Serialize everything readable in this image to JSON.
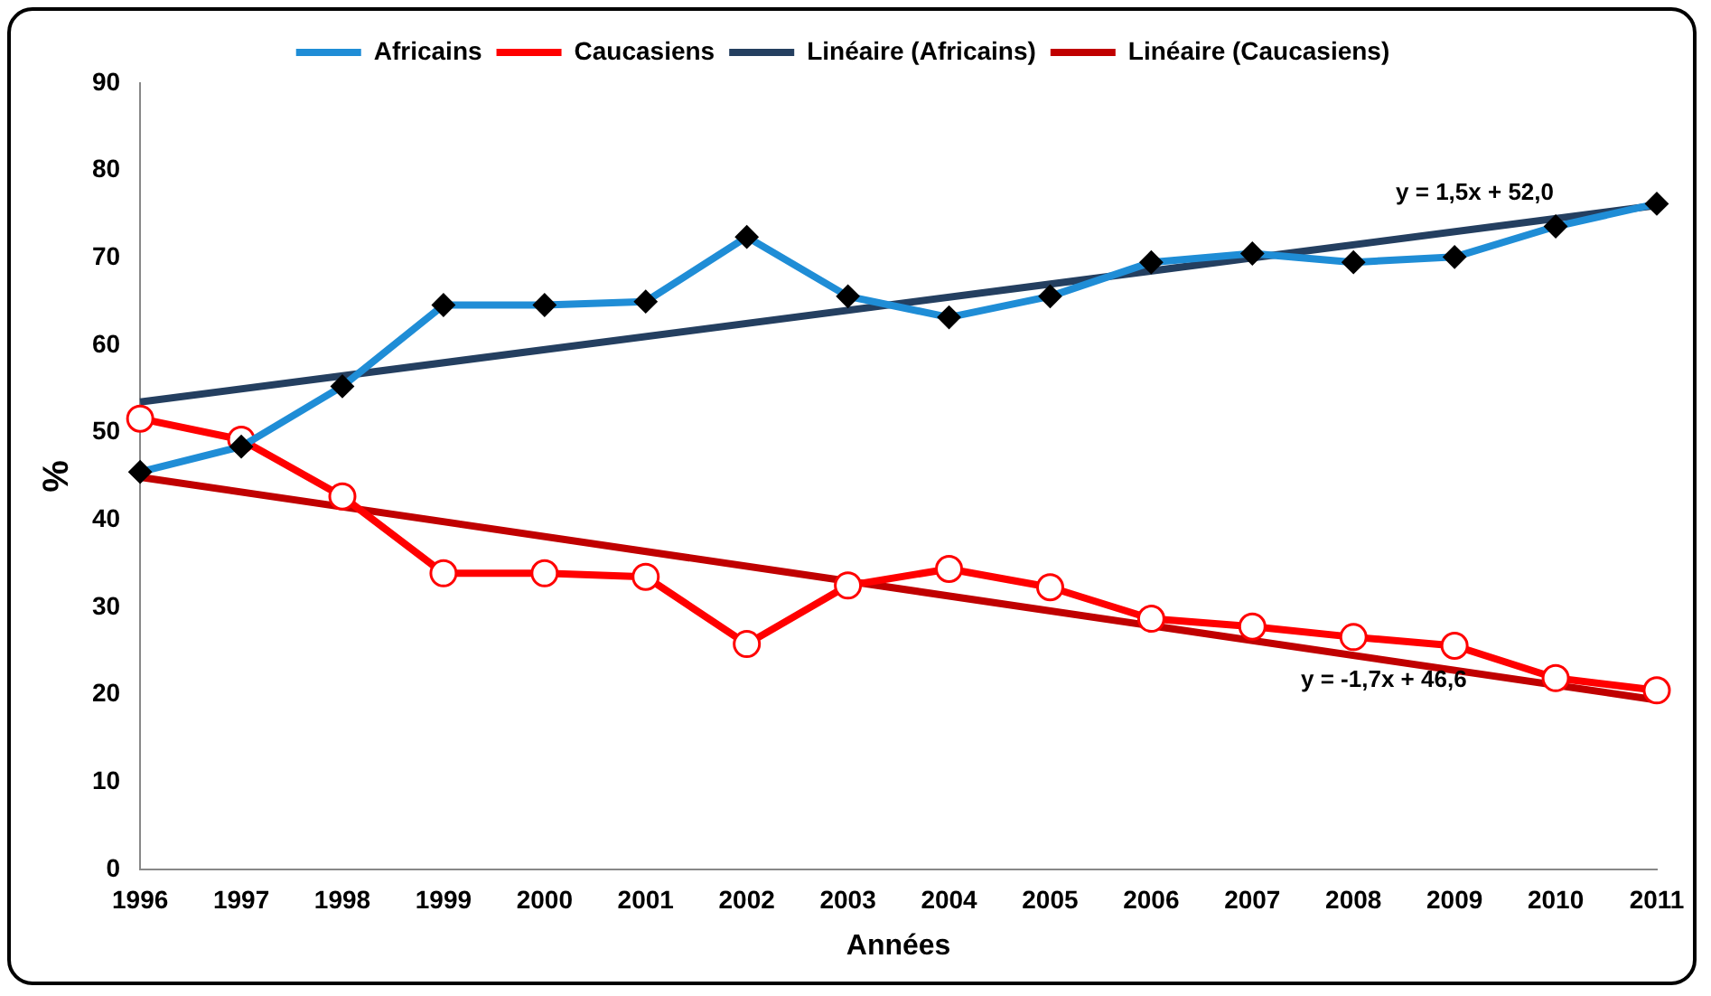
{
  "chart_data": {
    "type": "line",
    "xlabel": "Années",
    "ylabel": "%",
    "categories": [
      "1996",
      "1997",
      "1998",
      "1999",
      "2000",
      "2001",
      "2002",
      "2003",
      "2004",
      "2005",
      "2006",
      "2007",
      "2008",
      "2009",
      "2010",
      "2011"
    ],
    "series": [
      {
        "name": "Africains",
        "color": "#1f8dd6",
        "marker": "diamond",
        "values": [
          45.5,
          48.4,
          55.3,
          64.6,
          64.6,
          65.0,
          72.4,
          65.6,
          63.2,
          65.6,
          69.5,
          70.5,
          69.5,
          70.1,
          73.6,
          76.2
        ]
      },
      {
        "name": "Caucasiens",
        "color": "#ff0000",
        "marker": "circle",
        "values": [
          51.6,
          49.2,
          42.7,
          33.9,
          33.9,
          33.5,
          25.8,
          32.5,
          34.4,
          32.3,
          28.7,
          27.8,
          26.6,
          25.6,
          21.9,
          20.5
        ]
      },
      {
        "name": "Linéaire (Africains)",
        "color": "#243f60",
        "marker": "none",
        "values": [
          53.5,
          null,
          null,
          null,
          null,
          null,
          null,
          null,
          null,
          null,
          null,
          null,
          null,
          null,
          null,
          76.0
        ]
      },
      {
        "name": "Linéaire (Caucasiens)",
        "color": "#c00000",
        "marker": "none",
        "values": [
          44.9,
          null,
          null,
          null,
          null,
          null,
          null,
          null,
          null,
          null,
          null,
          null,
          null,
          null,
          null,
          19.4
        ]
      }
    ],
    "ylim": [
      0,
      90
    ],
    "yticks": [
      0,
      10,
      20,
      30,
      40,
      50,
      60,
      70,
      80,
      90
    ],
    "grid": false,
    "legend": "top",
    "annotations": [
      "y = 1,5x + 52,0",
      "y = -1,7x + 46,6"
    ]
  }
}
